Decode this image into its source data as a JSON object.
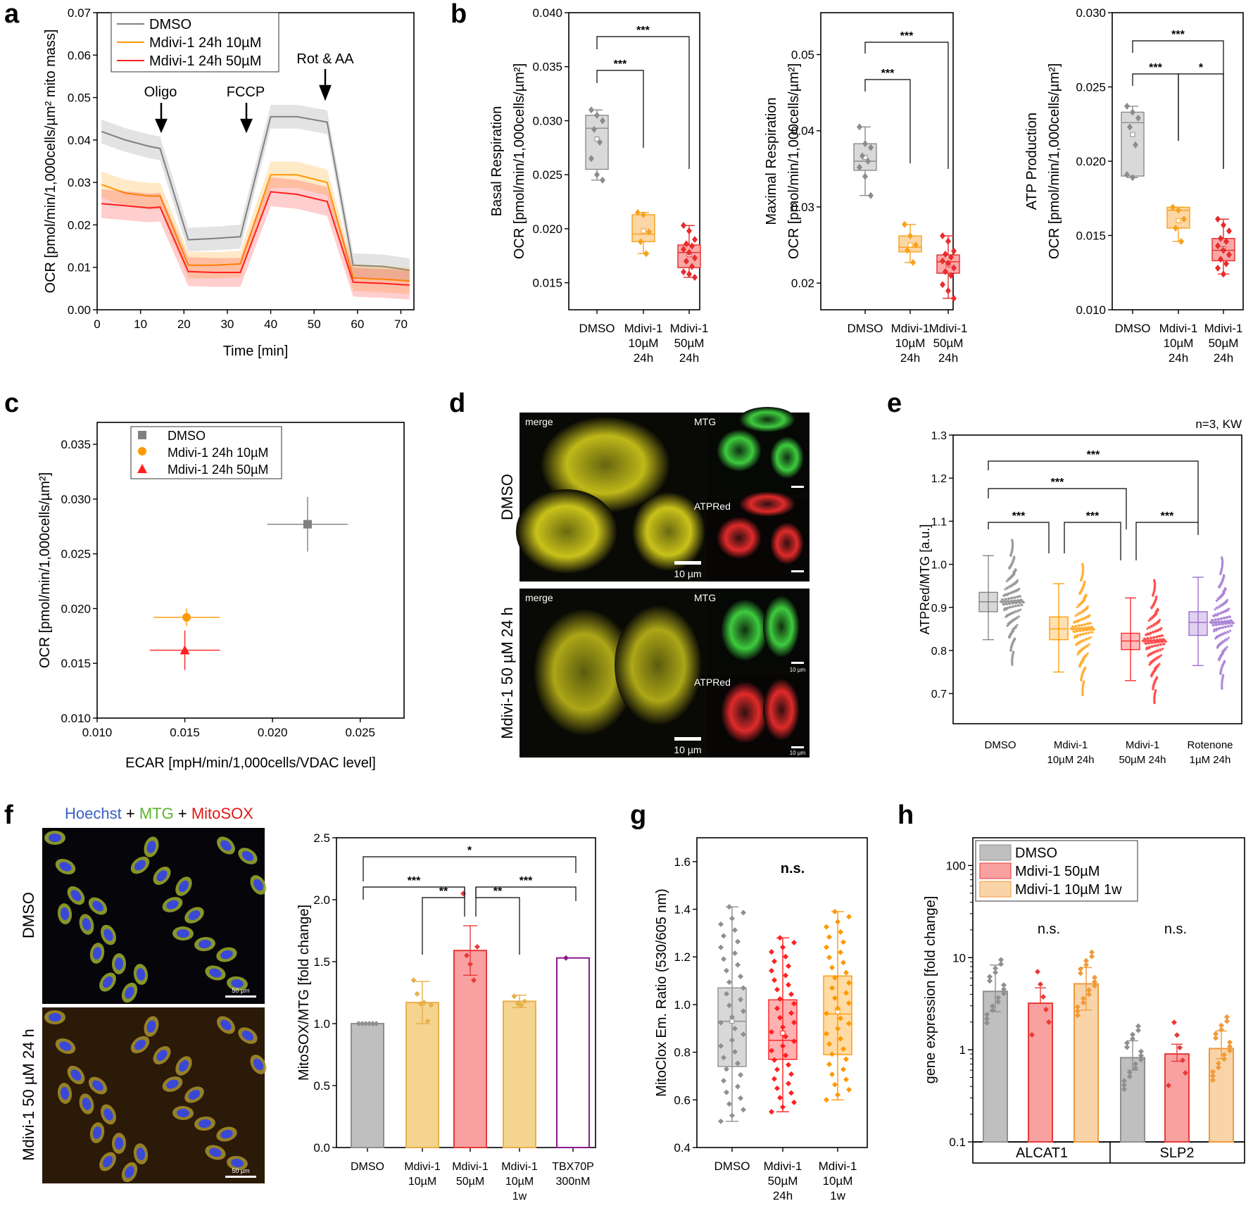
{
  "panels": {
    "a": "a",
    "b": "b",
    "c": "c",
    "d": "d",
    "e": "e",
    "f": "f",
    "g": "g",
    "h": "h"
  },
  "chart_data": [
    {
      "id": "a",
      "type": "line",
      "xlabel": "Time [min]",
      "ylabel": "OCR [pmol/min/1,000cells/µm² mito mass]",
      "xlim": [
        0,
        73
      ],
      "ylim": [
        0,
        0.07
      ],
      "xticks": [
        "0",
        "10",
        "20",
        "30",
        "40",
        "50",
        "60",
        "70"
      ],
      "yticks": [
        "0.00",
        "0.01",
        "0.02",
        "0.03",
        "0.04",
        "0.05",
        "0.06",
        "0.07"
      ],
      "annotations": [
        "Oligo",
        "FCCP",
        "Rot & AA"
      ],
      "x": [
        1,
        6.5,
        12,
        14.5,
        21,
        27,
        33,
        40,
        46,
        53,
        59,
        66,
        72
      ],
      "series": [
        {
          "name": "DMSO",
          "color": "#808080",
          "values": [
            0.042,
            0.04,
            0.0385,
            0.038,
            0.0165,
            0.0168,
            0.0172,
            0.0455,
            0.0455,
            0.0442,
            0.0105,
            0.0102,
            0.0093
          ]
        },
        {
          "name": "Mdivi-1 24h 10µM",
          "color": "#ff9900",
          "values": [
            0.0295,
            0.0275,
            0.0268,
            0.0268,
            0.0105,
            0.0105,
            0.0108,
            0.0318,
            0.0318,
            0.03,
            0.0075,
            0.0072,
            0.0068
          ]
        },
        {
          "name": "Mdivi-1 24h 50µM",
          "color": "#ff2020",
          "values": [
            0.025,
            0.0245,
            0.024,
            0.0242,
            0.009,
            0.0088,
            0.0088,
            0.0278,
            0.0272,
            0.0255,
            0.0065,
            0.0062,
            0.0058
          ]
        }
      ]
    },
    {
      "id": "b1",
      "type": "box",
      "ylabel_line1": "Basal Respiration",
      "ylabel_line2": "OCR [pmol/min/1,000cells/µm²]",
      "ylim": [
        0.0125,
        0.04
      ],
      "yticks": [
        "0.015",
        "0.020",
        "0.025",
        "0.030",
        "0.035",
        "0.040"
      ],
      "categories": [
        [
          "DMSO"
        ],
        [
          "Mdivi-1",
          "10µM",
          "24h"
        ],
        [
          "Mdivi-1",
          "50µM",
          "24h"
        ]
      ],
      "boxes": [
        {
          "q1": 0.0255,
          "median": 0.0293,
          "q3": 0.0305,
          "wlo": 0.0245,
          "whi": 0.031,
          "mean": 0.0283,
          "points": [
            0.031,
            0.0305,
            0.03,
            0.0292,
            0.028,
            0.0265,
            0.025,
            0.0245
          ]
        },
        {
          "q1": 0.0188,
          "median": 0.0195,
          "q3": 0.0213,
          "wlo": 0.0177,
          "whi": 0.0215,
          "mean": 0.0198,
          "points": [
            0.0215,
            0.0213,
            0.0197,
            0.0188,
            0.0177
          ]
        },
        {
          "q1": 0.0164,
          "median": 0.0178,
          "q3": 0.0185,
          "wlo": 0.0155,
          "whi": 0.0203,
          "mean": 0.0176,
          "points": [
            0.0203,
            0.0198,
            0.019,
            0.0186,
            0.0184,
            0.0181,
            0.0178,
            0.0173,
            0.017,
            0.0165,
            0.016,
            0.0158,
            0.0155
          ]
        }
      ],
      "sig": [
        "***",
        "***"
      ]
    },
    {
      "id": "b2",
      "type": "box",
      "ylabel_line1": "Maximal Respiration",
      "ylabel_line2": "OCR [pmol/min/1,000cells/µm²]",
      "ylim": [
        0.0165,
        0.0555
      ],
      "yticks": [
        "0.02",
        "0.03",
        "0.04",
        "0.05"
      ],
      "categories": [
        [
          "DMSO"
        ],
        [
          "Mdivi-1",
          "10µM",
          "24h"
        ],
        [
          "Mdivi-1",
          "50µM",
          "24h"
        ]
      ],
      "boxes": [
        {
          "q1": 0.0348,
          "median": 0.036,
          "q3": 0.0383,
          "wlo": 0.0315,
          "whi": 0.0405,
          "mean": 0.0365,
          "points": [
            0.0405,
            0.0383,
            0.0378,
            0.0367,
            0.036,
            0.0352,
            0.034,
            0.0315
          ]
        },
        {
          "q1": 0.0241,
          "median": 0.0247,
          "q3": 0.0262,
          "wlo": 0.0227,
          "whi": 0.0277,
          "mean": 0.025,
          "points": [
            0.0277,
            0.0262,
            0.025,
            0.0243,
            0.0227
          ]
        },
        {
          "q1": 0.0213,
          "median": 0.0228,
          "q3": 0.0237,
          "wlo": 0.018,
          "whi": 0.0262,
          "mean": 0.0224,
          "points": [
            0.0262,
            0.0255,
            0.0242,
            0.0238,
            0.0234,
            0.0229,
            0.0226,
            0.022,
            0.0215,
            0.021,
            0.0198,
            0.019,
            0.018
          ]
        }
      ],
      "sig": [
        "***",
        "***"
      ]
    },
    {
      "id": "b3",
      "type": "box",
      "ylabel_line1": "ATP Production",
      "ylabel_line2": "OCR [pmol/min/1,000cells/µm²]",
      "ylim": [
        0.01,
        0.03
      ],
      "yticks": [
        "0.010",
        "0.015",
        "0.020",
        "0.025",
        "0.030"
      ],
      "categories": [
        [
          "DMSO"
        ],
        [
          "Mdivi-1",
          "10µM",
          "24h"
        ],
        [
          "Mdivi-1",
          "50µM",
          "24h"
        ]
      ],
      "boxes": [
        {
          "q1": 0.019,
          "median": 0.0226,
          "q3": 0.0233,
          "wlo": 0.0189,
          "whi": 0.0237,
          "mean": 0.0218,
          "points": [
            0.0237,
            0.0233,
            0.0229,
            0.0223,
            0.0211,
            0.0191,
            0.0189
          ]
        },
        {
          "q1": 0.0155,
          "median": 0.0167,
          "q3": 0.0169,
          "wlo": 0.0146,
          "whi": 0.0169,
          "mean": 0.016,
          "points": [
            0.0169,
            0.0167,
            0.0161,
            0.0155,
            0.0146
          ]
        },
        {
          "q1": 0.0133,
          "median": 0.014,
          "q3": 0.0148,
          "wlo": 0.0124,
          "whi": 0.0161,
          "mean": 0.0141,
          "points": [
            0.0161,
            0.0157,
            0.0153,
            0.0148,
            0.0146,
            0.0143,
            0.014,
            0.0137,
            0.0134,
            0.0131,
            0.0128,
            0.0124
          ]
        }
      ],
      "sig": [
        "***",
        "***",
        "*"
      ]
    },
    {
      "id": "c",
      "type": "scatter",
      "xlabel": "ECAR [mpH/min/1,000cells/VDAC level]",
      "ylabel": "OCR [pmol/min/1,000cells/µm²]",
      "xlim": [
        0.01,
        0.0275
      ],
      "ylim": [
        0.01,
        0.037
      ],
      "xticks": [
        "0.010",
        "0.015",
        "0.020",
        "0.025"
      ],
      "yticks": [
        "0.010",
        "0.015",
        "0.020",
        "0.025",
        "0.030",
        "0.035"
      ],
      "series": [
        {
          "name": "DMSO",
          "marker": "square",
          "color": "#808080",
          "x": 0.022,
          "y": 0.0277,
          "xerr": 0.0023,
          "yerr": 0.0025
        },
        {
          "name": "Mdivi-1 24h 10µM",
          "marker": "circle",
          "color": "#ff9900",
          "x": 0.0151,
          "y": 0.0192,
          "xerr": 0.0019,
          "yerr": 0.0008
        },
        {
          "name": "Mdivi-1 24h 50µM",
          "marker": "triangle",
          "color": "#ff2020",
          "x": 0.015,
          "y": 0.0162,
          "xerr": 0.002,
          "yerr": 0.0018
        }
      ]
    },
    {
      "id": "e",
      "type": "box",
      "ylabel": "ATPRed/MTG [a.u.]",
      "note": "n=3, KW",
      "ylim": [
        0.63,
        1.3
      ],
      "yticks": [
        "0.7",
        "0.8",
        "0.9",
        "1.0",
        "1.1",
        "1.2",
        "1.3"
      ],
      "categories": [
        [
          "DMSO"
        ],
        [
          "Mdivi-1",
          "10µM 24h"
        ],
        [
          "Mdivi-1",
          "50µM 24h"
        ],
        [
          "Rotenone",
          "1µM 24h"
        ]
      ],
      "colors": [
        "#7f7f7f",
        "#ff9900",
        "#ff2020",
        "#9966cc"
      ],
      "boxes": [
        {
          "q1": 0.89,
          "median": 0.913,
          "q3": 0.935,
          "wlo": 0.825,
          "whi": 1.02,
          "mean": 0.913
        },
        {
          "q1": 0.825,
          "median": 0.85,
          "q3": 0.878,
          "wlo": 0.75,
          "whi": 0.955,
          "mean": 0.85
        },
        {
          "q1": 0.802,
          "median": 0.822,
          "q3": 0.84,
          "wlo": 0.73,
          "whi": 0.922,
          "mean": 0.822
        },
        {
          "q1": 0.835,
          "median": 0.865,
          "q3": 0.89,
          "wlo": 0.765,
          "whi": 0.97,
          "mean": 0.862
        }
      ],
      "sig": [
        "***",
        "***",
        "***",
        "***",
        "***"
      ]
    },
    {
      "id": "f",
      "type": "bar",
      "ylabel": "MitoSOX/MTG [fold change]",
      "ylim": [
        0,
        2.5
      ],
      "yticks": [
        "0.0",
        "0.5",
        "1.0",
        "1.5",
        "2.0",
        "2.5"
      ],
      "categories": [
        [
          "DMSO"
        ],
        [
          "Mdivi-1",
          "10µM"
        ],
        [
          "Mdivi-1",
          "50µM"
        ],
        [
          "Mdivi-1",
          "10µM",
          "1w"
        ],
        [
          "TBX70P",
          "300nM"
        ]
      ],
      "values": [
        1.0,
        1.17,
        1.59,
        1.18,
        1.53
      ],
      "errors": [
        0.0,
        0.17,
        0.2,
        0.05,
        0.0
      ],
      "colors": [
        "#bfbfbf",
        "#f5d48f",
        "#f9a0a0",
        "#f5d48f",
        "#ffffff"
      ],
      "edges": [
        "#8f8f8f",
        "#e6b04c",
        "#e83a3a",
        "#e6b04c",
        "#8b1a8b"
      ],
      "points": [
        [
          1,
          1,
          1,
          1,
          1,
          1
        ],
        [
          1.35,
          1.24,
          1.16,
          1.17,
          1.02,
          1.15
        ],
        [
          2.05,
          1.55,
          1.48,
          1.35,
          1.62
        ],
        [
          1.22,
          1.16,
          1.15,
          1.18
        ],
        [
          1.53
        ]
      ],
      "sig": [
        "*",
        "***",
        "***",
        "**",
        "**"
      ],
      "image_header": {
        "hoechst": "Hoechst",
        "plus1": "+",
        "mtg": "MTG",
        "plus2": "+",
        "mitosox": "MitoSOX"
      },
      "image_rows": [
        "DMSO",
        "Mdivi-1 50 µM 24 h"
      ],
      "scale_text": "50 µm"
    },
    {
      "id": "g",
      "type": "box",
      "ylabel": "MitoClox Em. Ratio (530/605 nm)",
      "annotation": "n.s.",
      "ylim": [
        0.4,
        1.7
      ],
      "yticks": [
        "0.4",
        "0.6",
        "0.8",
        "1.0",
        "1.2",
        "1.4",
        "1.6"
      ],
      "categories": [
        [
          "DMSO"
        ],
        [
          "Mdivi-1",
          "50µM",
          "24h"
        ],
        [
          "Mdivi-1",
          "10µM",
          "1w"
        ]
      ],
      "colors": [
        "#8f8f8f",
        "#ff2020",
        "#ff9900"
      ],
      "boxes": [
        {
          "q1": 0.74,
          "median": 0.93,
          "q3": 1.07,
          "wlo": 0.51,
          "whi": 1.41,
          "mean": 0.93
        },
        {
          "q1": 0.77,
          "median": 0.85,
          "q3": 1.02,
          "wlo": 0.55,
          "whi": 1.28,
          "mean": 0.88
        },
        {
          "q1": 0.79,
          "median": 0.96,
          "q3": 1.12,
          "wlo": 0.6,
          "whi": 1.39,
          "mean": 0.97
        }
      ]
    },
    {
      "id": "h",
      "type": "bar",
      "ylabel": "gene expression [fold change]",
      "yscale": "log",
      "ylim": [
        0.1,
        200
      ],
      "yticks": [
        "0.1",
        "1",
        "10",
        "100"
      ],
      "groups": [
        "ALCAT1",
        "SLP2"
      ],
      "annotations": [
        "n.s.",
        "n.s."
      ],
      "series": [
        {
          "name": "DMSO",
          "color": "#bfbfbf",
          "edge": "#8f8f8f",
          "values": [
            4.3,
            0.82
          ],
          "errors": [
            [
              2.6,
              8.3
            ],
            [
              0.6,
              1.25
            ]
          ]
        },
        {
          "name": "Mdivi-1 50µM",
          "color": "#f9a0a0",
          "edge": "#e83a3a",
          "values": [
            3.2,
            0.9
          ],
          "errors": [
            [
              3.2,
              4.7
            ],
            [
              0.75,
              1.15
            ]
          ]
        },
        {
          "name": "Mdivi-1 10µM 1w",
          "color": "#f9d4a8",
          "edge": "#f09a3a",
          "values": [
            5.2,
            1.03
          ],
          "errors": [
            [
              2.7,
              7.8
            ],
            [
              0.8,
              1.6
            ]
          ]
        }
      ]
    }
  ],
  "micro_d": {
    "rows": [
      "DMSO",
      "Mdivi-1 50 µM 24 h"
    ],
    "merge": "merge",
    "mtg": "MTG",
    "atpred": "ATPRed",
    "scale": "10 µm",
    "small_scale": "10 µm"
  }
}
